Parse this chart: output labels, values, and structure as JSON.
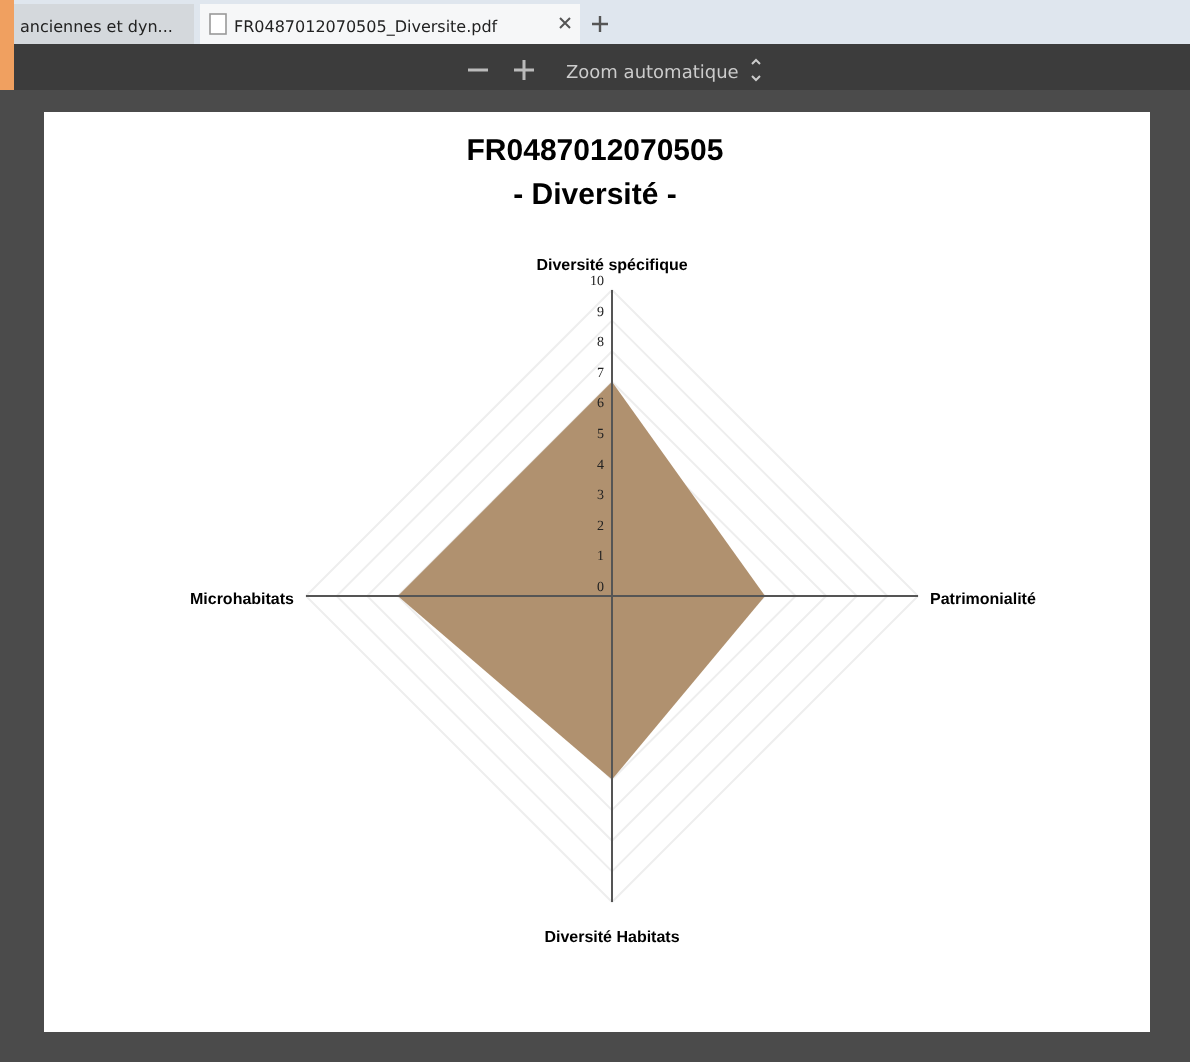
{
  "chart_data": {
    "type": "radar",
    "title": "FR0487012070505",
    "subtitle": "- Diversité -",
    "categories": [
      "Diversité spécifique",
      "Patrimonialité",
      "Diversité Habitats",
      "Microhabitats"
    ],
    "series": [
      {
        "color": "#b0916f",
        "values": [
          7,
          5,
          6,
          7
        ]
      }
    ],
    "ylim": [
      0,
      10
    ],
    "yticks": [
      0,
      1,
      2,
      3,
      4,
      5,
      6,
      7,
      8,
      9,
      10
    ],
    "grid": true,
    "annotations": [
      "anciennes et dyn...",
      "FR0487012070505_Diversite.pdf",
      "Zoom automatique"
    ]
  }
}
